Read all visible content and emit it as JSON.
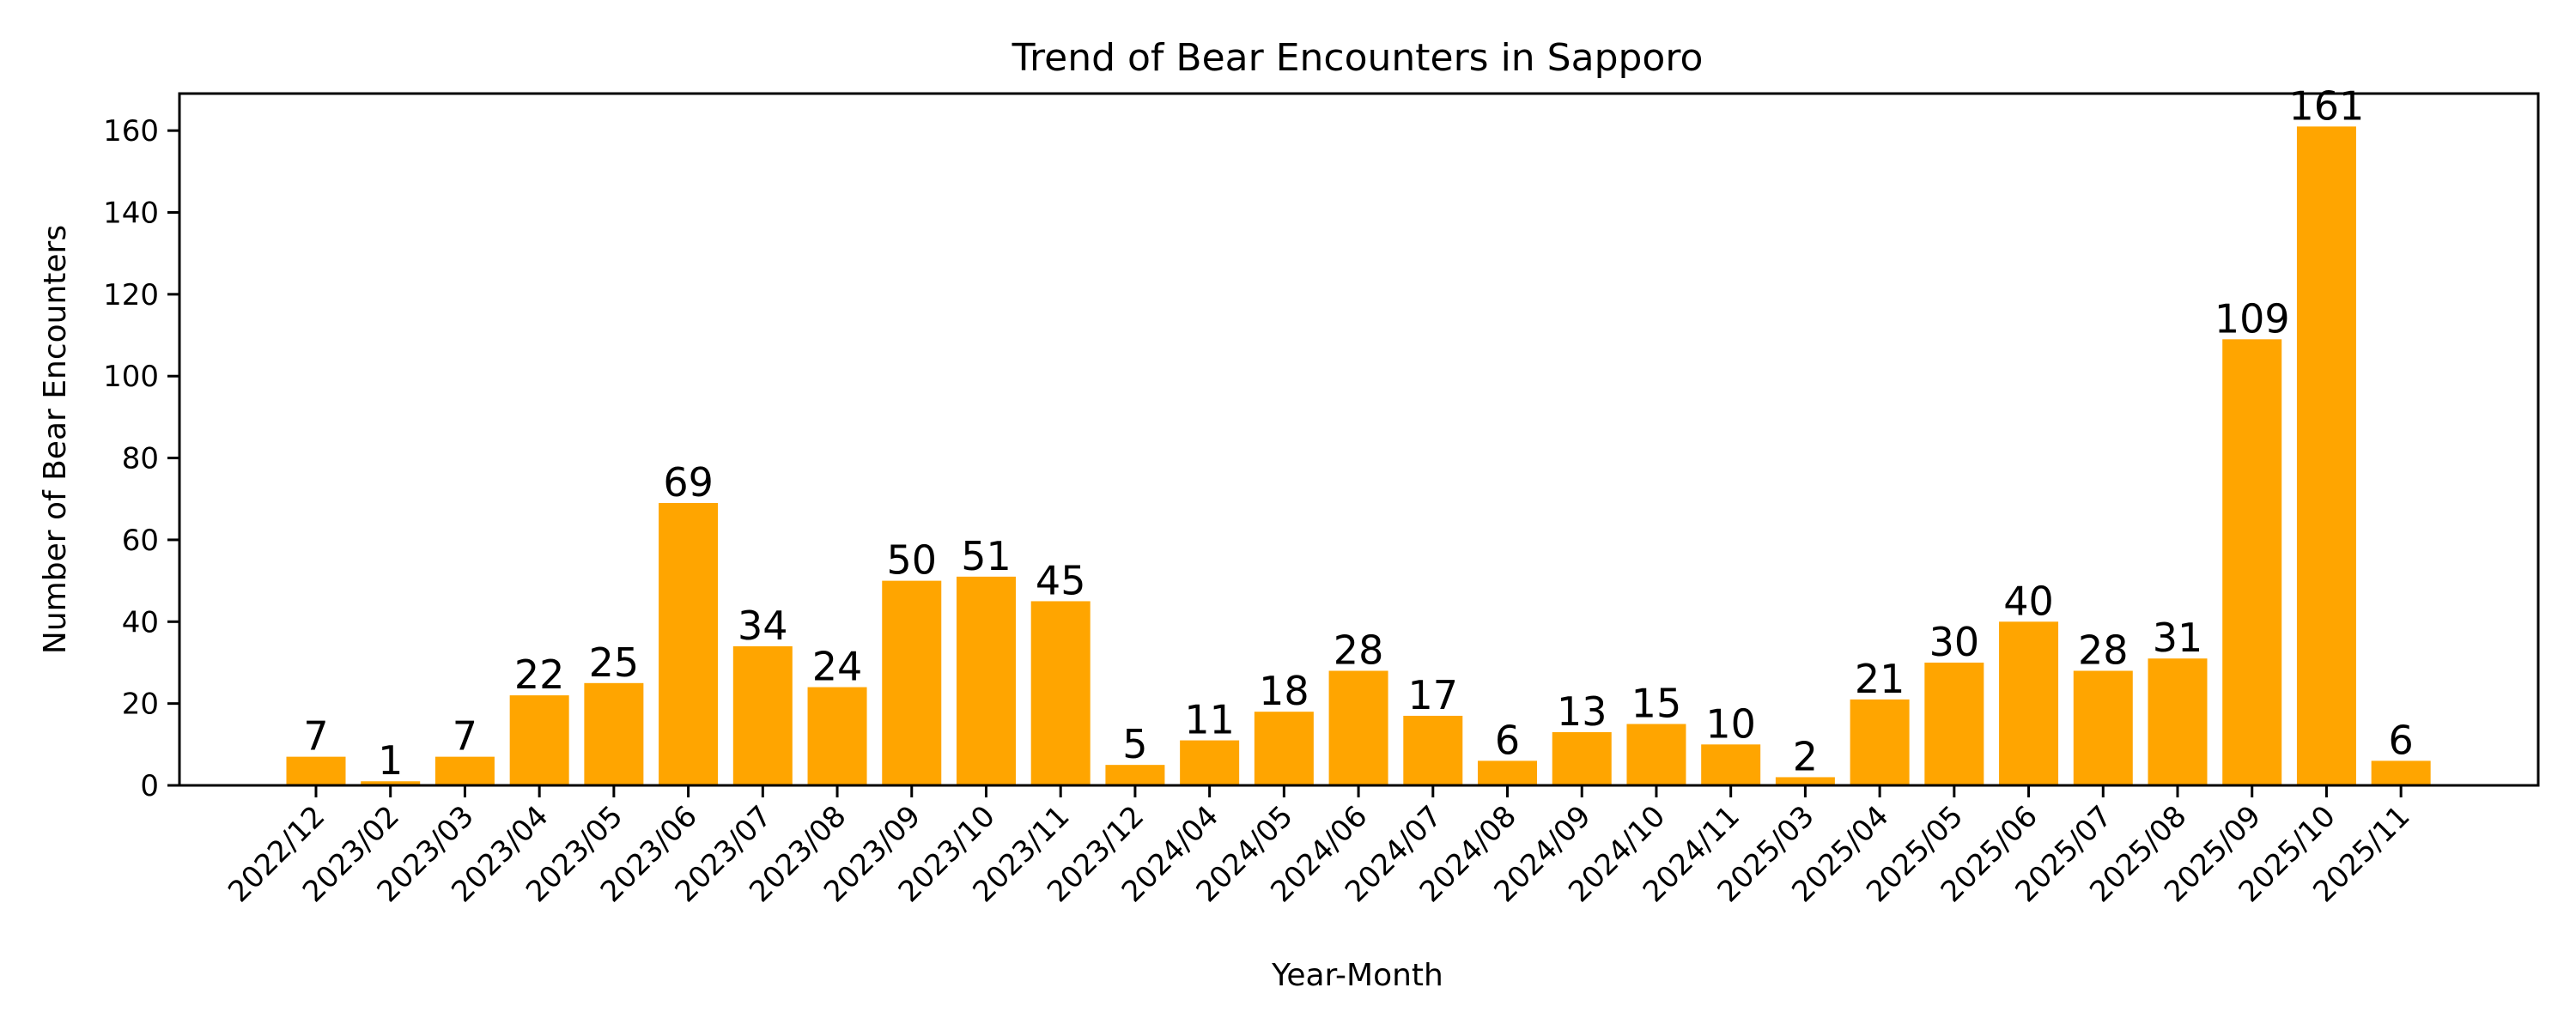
{
  "chart_data": {
    "type": "bar",
    "title": "Trend of Bear Encounters in Sapporo",
    "xlabel": "Year-Month",
    "ylabel": "Number of Bear Encounters",
    "categories": [
      "2022/12",
      "2023/02",
      "2023/03",
      "2023/04",
      "2023/05",
      "2023/06",
      "2023/07",
      "2023/08",
      "2023/09",
      "2023/10",
      "2023/11",
      "2023/12",
      "2024/04",
      "2024/05",
      "2024/06",
      "2024/07",
      "2024/08",
      "2024/09",
      "2024/10",
      "2024/11",
      "2025/03",
      "2025/04",
      "2025/05",
      "2025/06",
      "2025/07",
      "2025/08",
      "2025/09",
      "2025/10",
      "2025/11"
    ],
    "values": [
      7,
      1,
      7,
      22,
      25,
      69,
      34,
      24,
      50,
      51,
      45,
      5,
      11,
      18,
      28,
      17,
      6,
      13,
      15,
      10,
      2,
      21,
      30,
      40,
      28,
      31,
      109,
      161,
      6
    ],
    "ylim": [
      0,
      169
    ],
    "yticks": [
      0,
      20,
      40,
      60,
      80,
      100,
      120,
      140,
      160
    ],
    "grid": false,
    "legend": null,
    "bar_color": "#FFA500",
    "data_labels": true,
    "xtick_rotation": 45
  }
}
